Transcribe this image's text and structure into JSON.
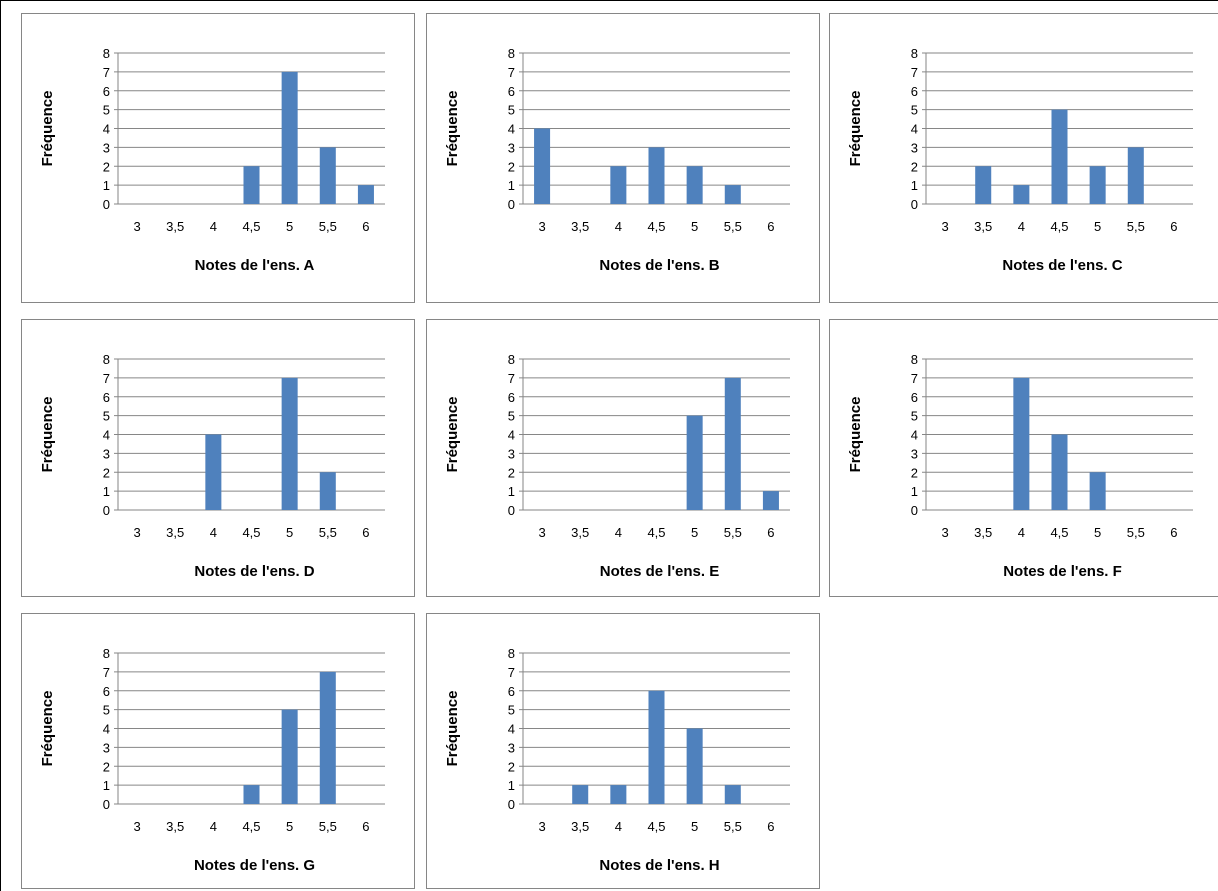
{
  "chart_data": [
    {
      "type": "bar",
      "categories": [
        "3",
        "3,5",
        "4",
        "4,5",
        "5",
        "5,5",
        "6"
      ],
      "values": [
        0,
        0,
        0,
        2,
        7,
        3,
        1
      ],
      "xlabel": "Notes de l'ens. A",
      "ylabel": "Fréquence",
      "ylim": [
        0,
        8
      ],
      "y_ticks": [
        "0",
        "1",
        "2",
        "3",
        "4",
        "5",
        "6",
        "7",
        "8"
      ],
      "grid": true,
      "color": "#4f81bd"
    },
    {
      "type": "bar",
      "categories": [
        "3",
        "3,5",
        "4",
        "4,5",
        "5",
        "5,5",
        "6"
      ],
      "values": [
        4,
        0,
        2,
        3,
        2,
        1,
        0
      ],
      "xlabel": "Notes de l'ens. B",
      "ylabel": "Fréquence",
      "ylim": [
        0,
        8
      ],
      "y_ticks": [
        "0",
        "1",
        "2",
        "3",
        "4",
        "5",
        "6",
        "7",
        "8"
      ],
      "grid": true,
      "color": "#4f81bd"
    },
    {
      "type": "bar",
      "categories": [
        "3",
        "3,5",
        "4",
        "4,5",
        "5",
        "5,5",
        "6"
      ],
      "values": [
        0,
        2,
        1,
        5,
        2,
        3,
        0
      ],
      "xlabel": "Notes de l'ens. C",
      "ylabel": "Fréquence",
      "ylim": [
        0,
        8
      ],
      "y_ticks": [
        "0",
        "1",
        "2",
        "3",
        "4",
        "5",
        "6",
        "7",
        "8"
      ],
      "grid": true,
      "color": "#4f81bd"
    },
    {
      "type": "bar",
      "categories": [
        "3",
        "3,5",
        "4",
        "4,5",
        "5",
        "5,5",
        "6"
      ],
      "values": [
        0,
        0,
        4,
        0,
        7,
        2,
        0
      ],
      "xlabel": "Notes de l'ens. D",
      "ylabel": "Fréquence",
      "ylim": [
        0,
        8
      ],
      "y_ticks": [
        "0",
        "1",
        "2",
        "3",
        "4",
        "5",
        "6",
        "7",
        "8"
      ],
      "grid": true,
      "color": "#4f81bd"
    },
    {
      "type": "bar",
      "categories": [
        "3",
        "3,5",
        "4",
        "4,5",
        "5",
        "5,5",
        "6"
      ],
      "values": [
        0,
        0,
        0,
        0,
        5,
        7,
        1
      ],
      "xlabel": "Notes de l'ens. E",
      "ylabel": "Fréquence",
      "ylim": [
        0,
        8
      ],
      "y_ticks": [
        "0",
        "1",
        "2",
        "3",
        "4",
        "5",
        "6",
        "7",
        "8"
      ],
      "grid": true,
      "color": "#4f81bd"
    },
    {
      "type": "bar",
      "categories": [
        "3",
        "3,5",
        "4",
        "4,5",
        "5",
        "5,5",
        "6"
      ],
      "values": [
        0,
        0,
        7,
        4,
        2,
        0,
        0
      ],
      "xlabel": "Notes de l'ens. F",
      "ylabel": "Fréquence",
      "ylim": [
        0,
        8
      ],
      "y_ticks": [
        "0",
        "1",
        "2",
        "3",
        "4",
        "5",
        "6",
        "7",
        "8"
      ],
      "grid": true,
      "color": "#4f81bd"
    },
    {
      "type": "bar",
      "categories": [
        "3",
        "3,5",
        "4",
        "4,5",
        "5",
        "5,5",
        "6"
      ],
      "values": [
        0,
        0,
        0,
        1,
        5,
        7,
        0
      ],
      "xlabel": "Notes de l'ens. G",
      "ylabel": "Fréquence",
      "ylim": [
        0,
        8
      ],
      "y_ticks": [
        "0",
        "1",
        "2",
        "3",
        "4",
        "5",
        "6",
        "7",
        "8"
      ],
      "grid": true,
      "color": "#4f81bd"
    },
    {
      "type": "bar",
      "categories": [
        "3",
        "3,5",
        "4",
        "4,5",
        "5",
        "5,5",
        "6"
      ],
      "values": [
        0,
        1,
        1,
        6,
        4,
        1,
        0
      ],
      "xlabel": "Notes de l'ens. H",
      "ylabel": "Fréquence",
      "ylim": [
        0,
        8
      ],
      "y_ticks": [
        "0",
        "1",
        "2",
        "3",
        "4",
        "5",
        "6",
        "7",
        "8"
      ],
      "grid": true,
      "color": "#4f81bd"
    }
  ]
}
